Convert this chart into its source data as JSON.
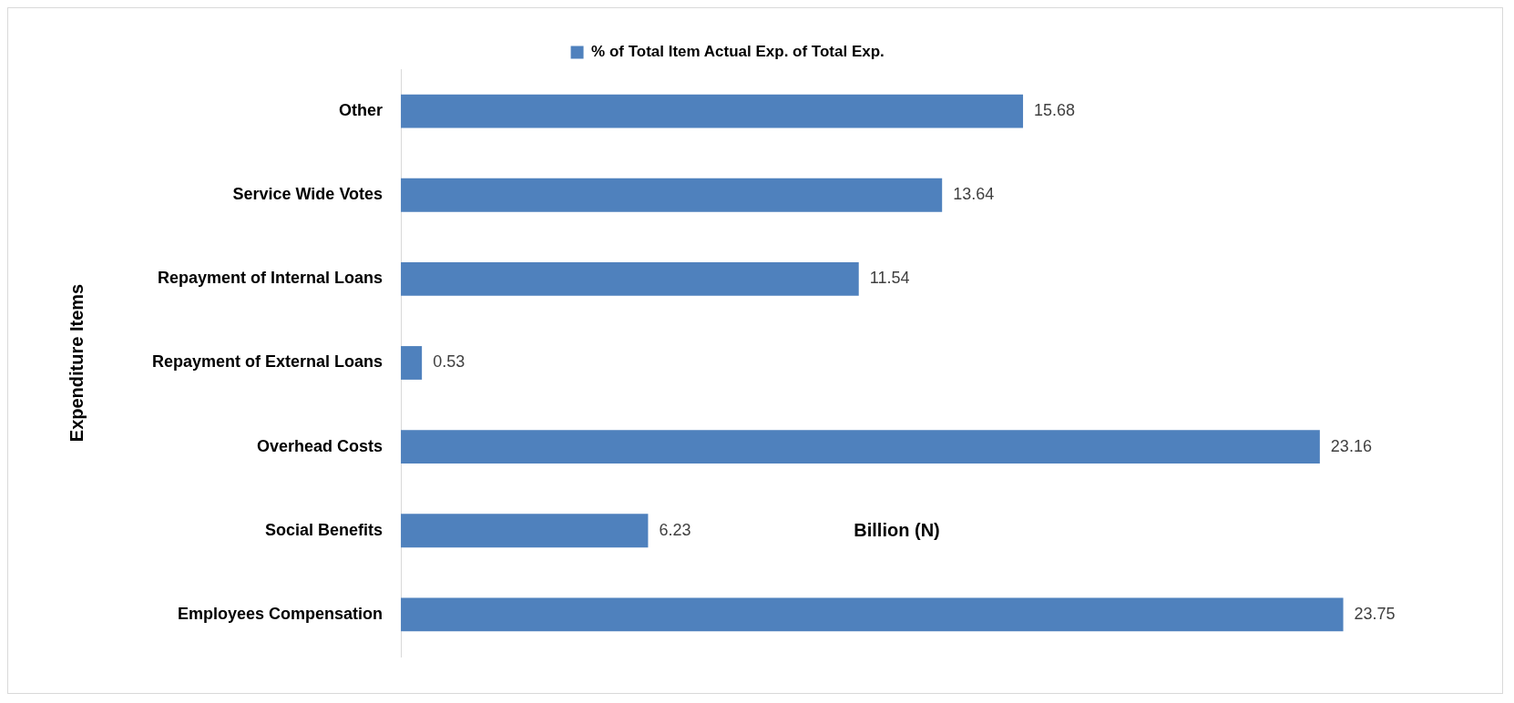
{
  "chart_data": {
    "type": "bar",
    "orientation": "horizontal",
    "categories": [
      "Other",
      "Service Wide Votes",
      "Repayment of Internal Loans",
      "Repayment of External Loans",
      "Overhead Costs",
      "Social Benefits",
      "Employees Compensation"
    ],
    "series": [
      {
        "name": "% of Total Item Actual Exp. of Total Exp.",
        "color": "#4f81bd",
        "values": [
          15.68,
          13.64,
          11.54,
          0.53,
          23.16,
          6.23,
          23.75
        ]
      }
    ],
    "xlabel": "Billion (N)",
    "ylabel": "Expenditure Items",
    "data_labels": true,
    "legend": "top",
    "grid": false,
    "tick_labels": "y"
  }
}
